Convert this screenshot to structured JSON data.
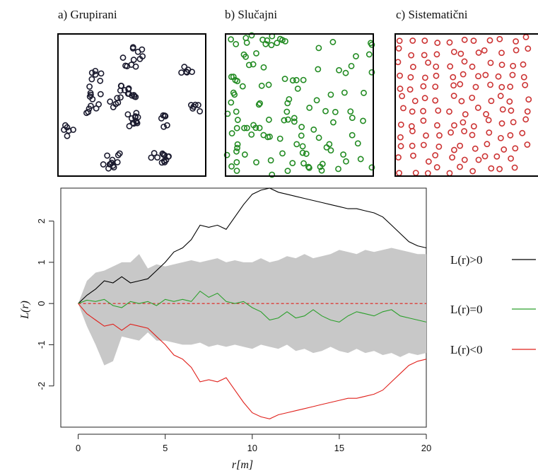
{
  "panels": [
    {
      "label": "a) Grupirani",
      "color": "#1a1a2e",
      "count": 110,
      "seed": 11,
      "pattern": "clustered"
    },
    {
      "label": "b) Slučajni",
      "color": "#228b22",
      "count": 120,
      "seed": 23,
      "pattern": "random"
    },
    {
      "label": "c) Sistematični",
      "color": "#cc3333",
      "count": 130,
      "seed": 37,
      "pattern": "systematic"
    }
  ],
  "chart_data": {
    "type": "line",
    "xlabel": "r[m]",
    "ylabel": "L(r)",
    "xlim": [
      -1,
      20
    ],
    "ylim": [
      -3,
      2.8
    ],
    "xticks": [
      0,
      5,
      10,
      15,
      20
    ],
    "yticks": [
      -2,
      -1,
      0,
      1,
      2
    ],
    "x": [
      0,
      0.5,
      1,
      1.5,
      2,
      2.5,
      3,
      3.5,
      4,
      4.5,
      5,
      5.5,
      6,
      6.5,
      7,
      7.5,
      8,
      8.5,
      9,
      9.5,
      10,
      10.5,
      11,
      11.5,
      12,
      12.5,
      13,
      13.5,
      14,
      14.5,
      15,
      15.5,
      16,
      16.5,
      17,
      17.5,
      18,
      18.5,
      19,
      19.5,
      20
    ],
    "series": [
      {
        "name": "L(r)>0",
        "color": "#000000",
        "values": [
          0,
          0.2,
          0.35,
          0.55,
          0.5,
          0.65,
          0.5,
          0.55,
          0.6,
          0.8,
          1.0,
          1.25,
          1.35,
          1.55,
          1.9,
          1.85,
          1.9,
          1.8,
          2.1,
          2.4,
          2.65,
          2.75,
          2.8,
          2.7,
          2.65,
          2.6,
          2.55,
          2.5,
          2.45,
          2.4,
          2.35,
          2.3,
          2.3,
          2.25,
          2.2,
          2.1,
          1.9,
          1.7,
          1.5,
          1.4,
          1.35
        ]
      },
      {
        "name": "L(r)=0",
        "color": "#2ca02c",
        "values": [
          0,
          0.08,
          0.05,
          0.1,
          -0.05,
          -0.1,
          0.05,
          0.0,
          0.05,
          -0.05,
          0.1,
          0.05,
          0.1,
          0.05,
          0.3,
          0.15,
          0.25,
          0.05,
          0.0,
          0.05,
          -0.1,
          -0.2,
          -0.4,
          -0.35,
          -0.2,
          -0.35,
          -0.3,
          -0.15,
          -0.3,
          -0.4,
          -0.45,
          -0.3,
          -0.2,
          -0.25,
          -0.3,
          -0.2,
          -0.15,
          -0.3,
          -0.35,
          -0.4,
          -0.45
        ]
      },
      {
        "name": "L(r)<0",
        "color": "#e0201b",
        "values": [
          0,
          -0.25,
          -0.4,
          -0.55,
          -0.5,
          -0.65,
          -0.5,
          -0.55,
          -0.6,
          -0.8,
          -1.0,
          -1.25,
          -1.35,
          -1.55,
          -1.9,
          -1.85,
          -1.9,
          -1.8,
          -2.1,
          -2.4,
          -2.65,
          -2.75,
          -2.8,
          -2.7,
          -2.65,
          -2.6,
          -2.55,
          -2.5,
          -2.45,
          -2.4,
          -2.35,
          -2.3,
          -2.3,
          -2.25,
          -2.2,
          -2.1,
          -1.9,
          -1.7,
          -1.5,
          -1.4,
          -1.35
        ]
      }
    ],
    "envelope": {
      "color": "#c8c8c8",
      "upper": [
        0,
        0.55,
        0.75,
        0.8,
        0.9,
        1.0,
        1.0,
        1.2,
        0.85,
        0.95,
        0.9,
        0.95,
        1.0,
        1.05,
        1.0,
        1.05,
        1.1,
        1.0,
        1.05,
        1.0,
        1.0,
        1.1,
        1.0,
        1.05,
        1.15,
        1.1,
        1.2,
        1.1,
        1.15,
        1.2,
        1.3,
        1.25,
        1.2,
        1.3,
        1.25,
        1.3,
        1.35,
        1.3,
        1.25,
        1.2,
        1.2
      ],
      "lower": [
        0,
        -0.55,
        -1.0,
        -1.5,
        -1.4,
        -0.8,
        -0.85,
        -0.9,
        -0.7,
        -0.9,
        -0.9,
        -0.95,
        -1.0,
        -1.0,
        -0.95,
        -1.05,
        -1.0,
        -1.05,
        -1.0,
        -1.05,
        -1.1,
        -1.0,
        -1.05,
        -1.1,
        -1.0,
        -1.15,
        -1.1,
        -1.2,
        -1.15,
        -1.05,
        -1.15,
        -1.2,
        -1.1,
        -1.2,
        -1.15,
        -1.25,
        -1.2,
        -1.3,
        -1.2,
        -1.25,
        -1.2
      ]
    },
    "reference_line": {
      "value": 0,
      "color": "#e0201b",
      "style": "dashed"
    },
    "legend_position": "right"
  }
}
